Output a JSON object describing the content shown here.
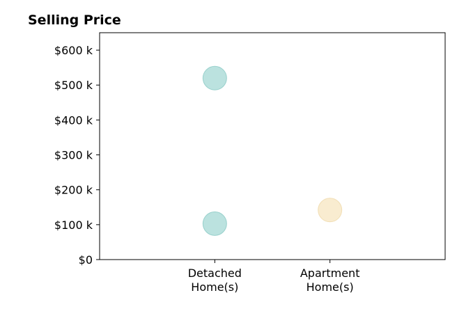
{
  "chart_data": {
    "type": "scatter",
    "title": "Selling Price",
    "xlabel": "",
    "ylabel": "",
    "categories": [
      [
        "Detached",
        "Home(s)"
      ],
      [
        "Apartment",
        "Home(s)"
      ]
    ],
    "x_slots": 3,
    "ylim": [
      0,
      650000
    ],
    "yticks": [
      0,
      100000,
      200000,
      300000,
      400000,
      500000,
      600000
    ],
    "ytick_labels": [
      "$0",
      "$100 k",
      "$200 k",
      "$300 k",
      "$400 k",
      "$500 k",
      "$600 k"
    ],
    "grid": false,
    "legend": "none",
    "series": [
      {
        "category_index": 0,
        "color": "#8ECFC9",
        "stroke": "#7cc3bd",
        "values": [
          520000,
          103000
        ]
      },
      {
        "category_index": 1,
        "color": "#F5DFB0",
        "stroke": "#edd4a0",
        "values": [
          142000
        ]
      }
    ]
  }
}
